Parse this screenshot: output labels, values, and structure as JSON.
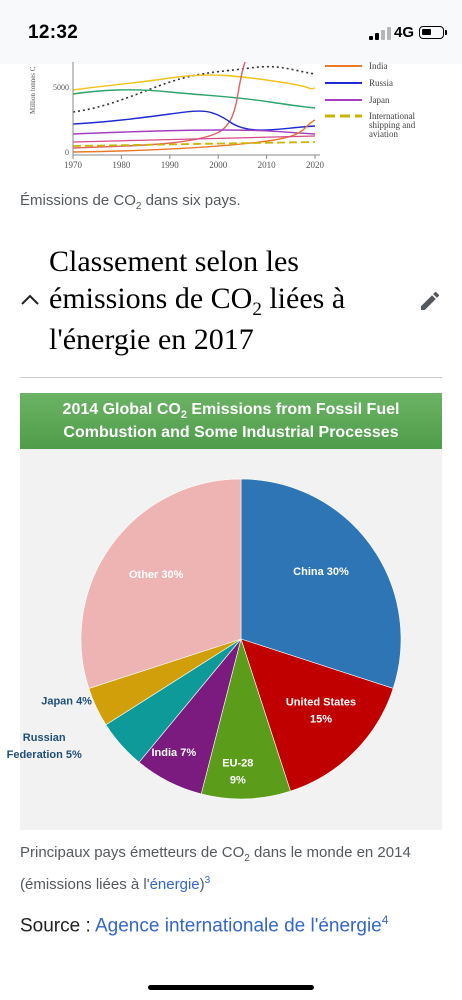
{
  "status_bar": {
    "time": "12:32",
    "network": "4G"
  },
  "line_chart": {
    "ylabel": "Million tonnes C",
    "y_ticks": [
      "5000",
      "0"
    ],
    "x_ticks": [
      "1970",
      "1980",
      "1990",
      "2000",
      "2010",
      "2020"
    ],
    "legend": [
      {
        "label": "India",
        "color": "#e8782a"
      },
      {
        "label": "Russia",
        "color": "#1f2bd1"
      },
      {
        "label": "Japan",
        "color": "#a43ec0"
      },
      {
        "label": "International shipping and aviation",
        "lines": [
          "International",
          "shipping and",
          "aviation"
        ],
        "color": "#c9b400"
      }
    ],
    "caption_prefix": "Émissions de CO",
    "caption_sub": "2",
    "caption_suffix": " dans six pays."
  },
  "section": {
    "title_part1": "Classement selon les émissions de CO",
    "title_sub": "2",
    "title_part2": " liées à l'énergie en 2017"
  },
  "chart_data": {
    "type": "pie",
    "title_part1": "2014 Global CO",
    "title_sub": "2",
    "title_part2": " Emissions from Fossil Fuel Combustion and Some Industrial Processes",
    "title_line1_suffix": " Emissions from Fossil Fuel",
    "title_line2": "Combustion and Some Industrial Processes",
    "slices": [
      {
        "label": "China 30%",
        "value": 30,
        "color": "#2e75b6",
        "text_color": "#ffffff"
      },
      {
        "label": "United States 15%",
        "lines": [
          "United States",
          "15%"
        ],
        "value": 15,
        "color": "#c00000",
        "text_color": "#ffffff"
      },
      {
        "label": "EU-28 9%",
        "lines": [
          "EU-28",
          "9%"
        ],
        "value": 9,
        "color": "#5b9d1b",
        "text_color": "#ffffff"
      },
      {
        "label": "India 7%",
        "value": 7,
        "color": "#7b1a7f",
        "text_color": "#ffffff"
      },
      {
        "label": "Russian Federation 5%",
        "lines": [
          "Russian",
          "Federation 5%"
        ],
        "value": 5,
        "color": "#0f9a9a",
        "text_color": "#1f4e79"
      },
      {
        "label": "Japan 4%",
        "value": 4,
        "color": "#d19f0a",
        "text_color": "#1f4e79"
      },
      {
        "label": "Other 30%",
        "value": 30,
        "color": "#eeb4b4",
        "text_color": "#ffffff"
      }
    ]
  },
  "pie_caption": {
    "part1": "Principaux pays émetteurs de CO",
    "sub": "2",
    "part2": " dans le monde en 2014 (émissions liées à l'",
    "link": "énergie",
    "part3": ")",
    "ref": "3"
  },
  "source": {
    "label": "Source : ",
    "link": "Agence internationale de l'énergie",
    "ref": "4"
  }
}
